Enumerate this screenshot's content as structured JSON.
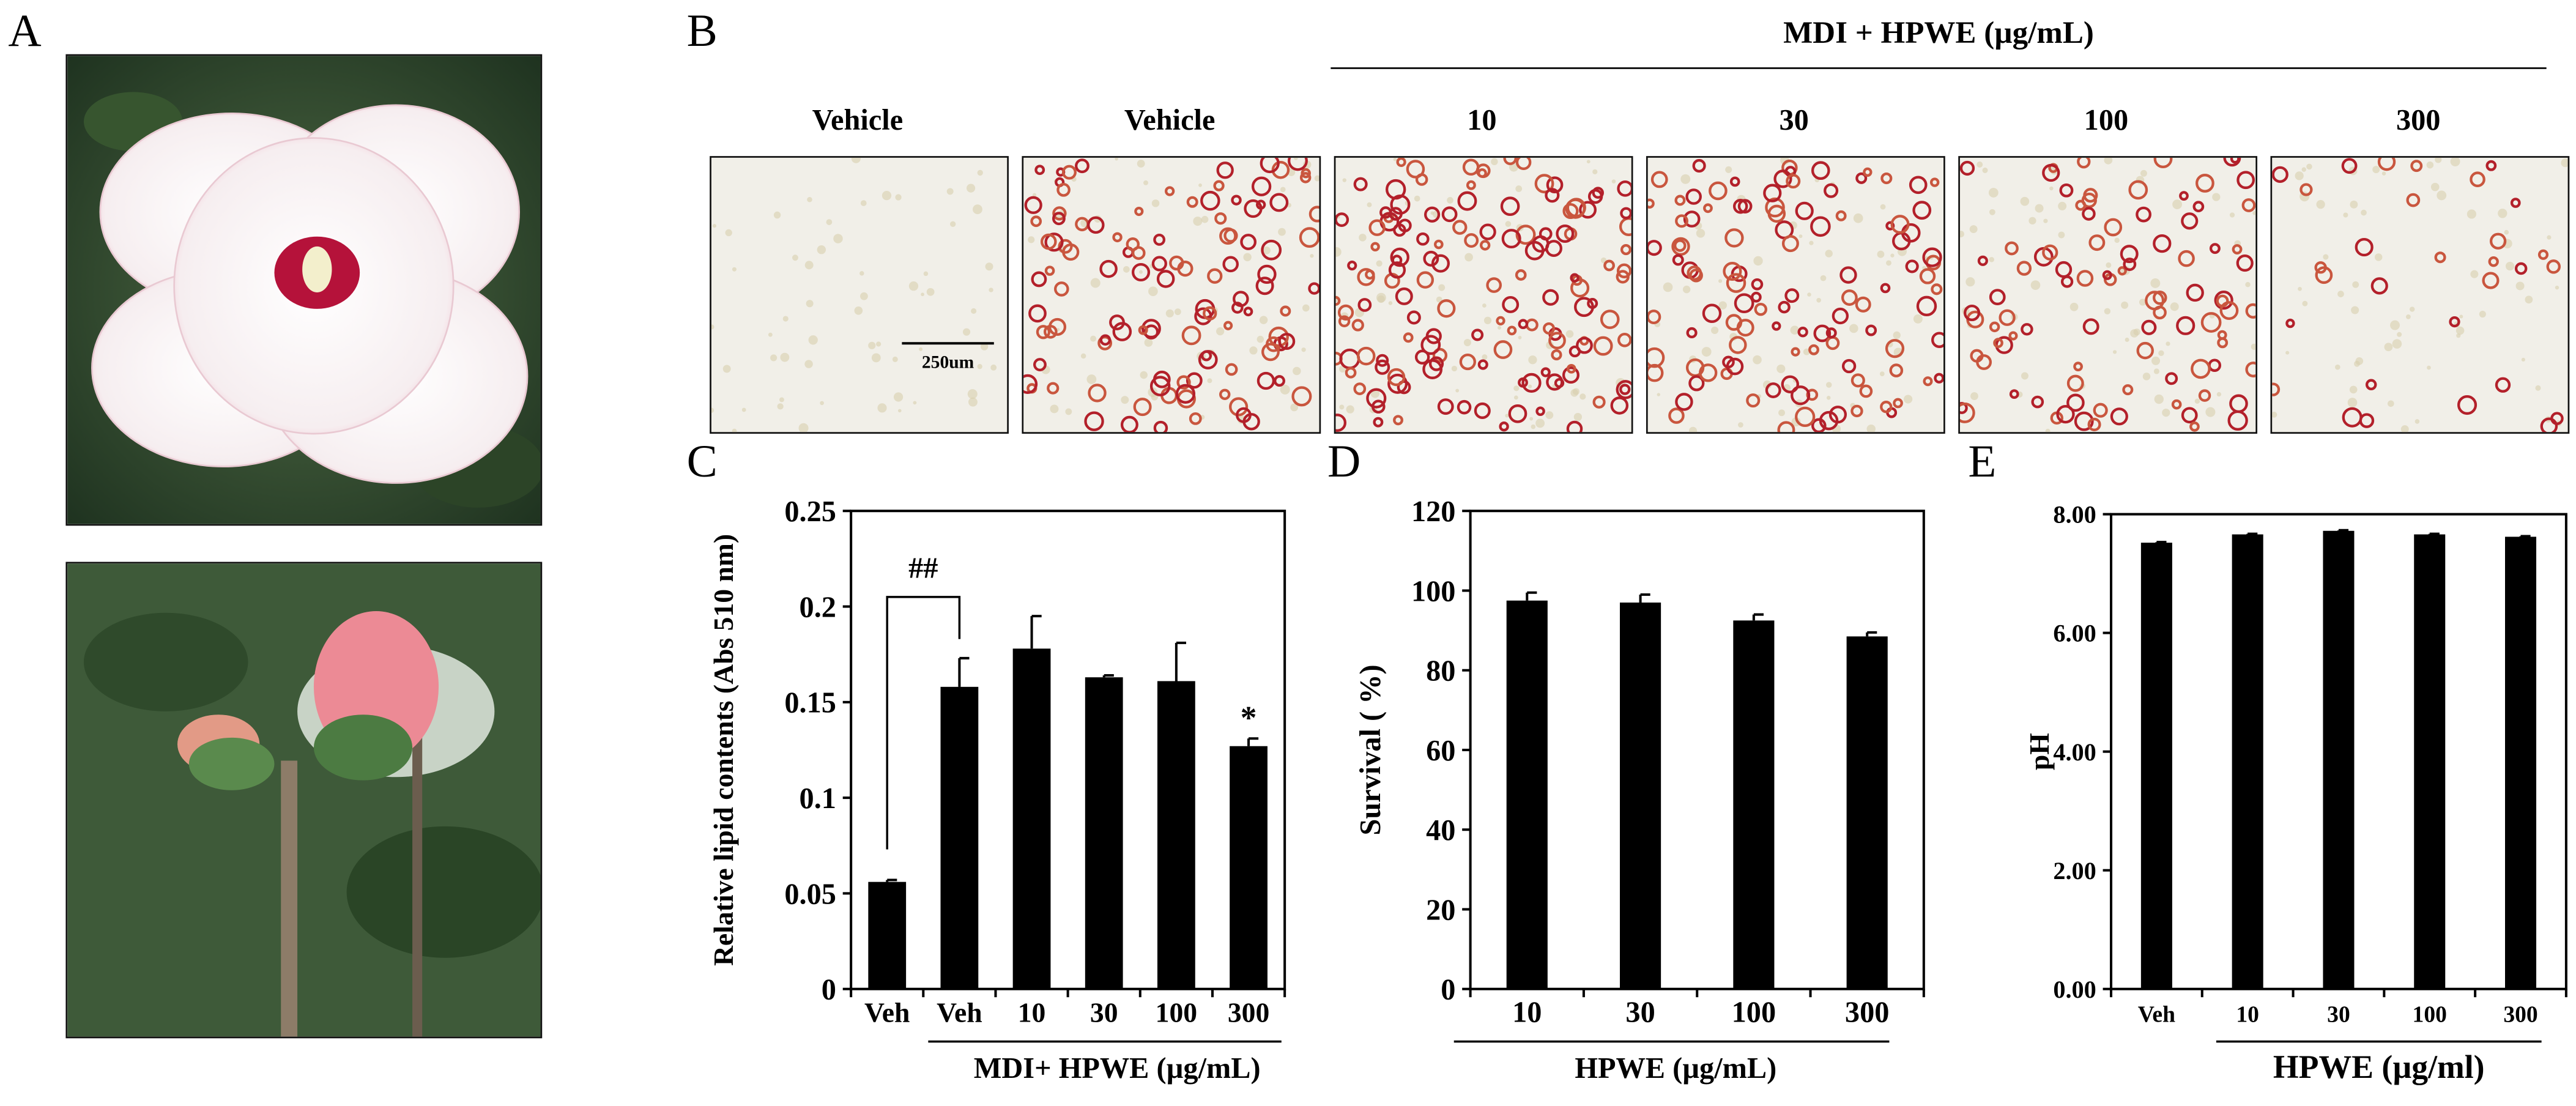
{
  "panels": {
    "a": {
      "letter": "A"
    },
    "b": {
      "letter": "B",
      "group_label": "MDI + HPWE (µg/mL)",
      "image_labels": [
        "Vehicle",
        "Vehicle",
        "10",
        "30",
        "100",
        "300"
      ],
      "scale_bar": "250um"
    },
    "c": {
      "letter": "C"
    },
    "d": {
      "letter": "D"
    },
    "e": {
      "letter": "E"
    }
  },
  "chart_data": [
    {
      "id": "c",
      "type": "bar",
      "ylabel": "Relative lipid contents (Abs 510 nm)",
      "xlabel": "MDI+ HPWE (µg/mL)",
      "categories": [
        "Veh",
        "Veh",
        "10",
        "30",
        "100",
        "300"
      ],
      "values": [
        0.056,
        0.158,
        0.178,
        0.163,
        0.161,
        0.127
      ],
      "errors": [
        0.001,
        0.015,
        0.017,
        0.001,
        0.02,
        0.004
      ],
      "ylim": [
        0,
        0.25
      ],
      "yticks": [
        "0",
        "0.05",
        "0.1",
        "0.15",
        "0.2",
        "0.25"
      ],
      "annotations": [
        {
          "text": "##",
          "between": [
            "Veh",
            "Veh"
          ]
        },
        {
          "text": "*",
          "category": "300"
        }
      ],
      "bar_color": "#000000",
      "grid": false
    },
    {
      "id": "d",
      "type": "bar",
      "ylabel": "Survival ( %)",
      "xlabel": "HPWE (µg/mL)",
      "categories": [
        "10",
        "30",
        "100",
        "300"
      ],
      "values": [
        97.5,
        97,
        92.5,
        88.5
      ],
      "errors": [
        2,
        2,
        1.5,
        1
      ],
      "ylim": [
        0,
        120
      ],
      "yticks": [
        "0",
        "20",
        "40",
        "60",
        "80",
        "100",
        "120"
      ],
      "bar_color": "#000000",
      "grid": false
    },
    {
      "id": "e",
      "type": "bar",
      "ylabel": "pH",
      "xlabel": "HPWE (µg/ml)",
      "categories": [
        "Veh",
        "10",
        "30",
        "100",
        "300"
      ],
      "values": [
        7.52,
        7.66,
        7.72,
        7.66,
        7.62
      ],
      "errors": [
        0.01,
        0.01,
        0.01,
        0.01,
        0.01
      ],
      "ylim": [
        0,
        8
      ],
      "yticks": [
        "0.00",
        "2.00",
        "4.00",
        "6.00",
        "8.00"
      ],
      "bar_color": "#000000",
      "grid": false
    }
  ]
}
